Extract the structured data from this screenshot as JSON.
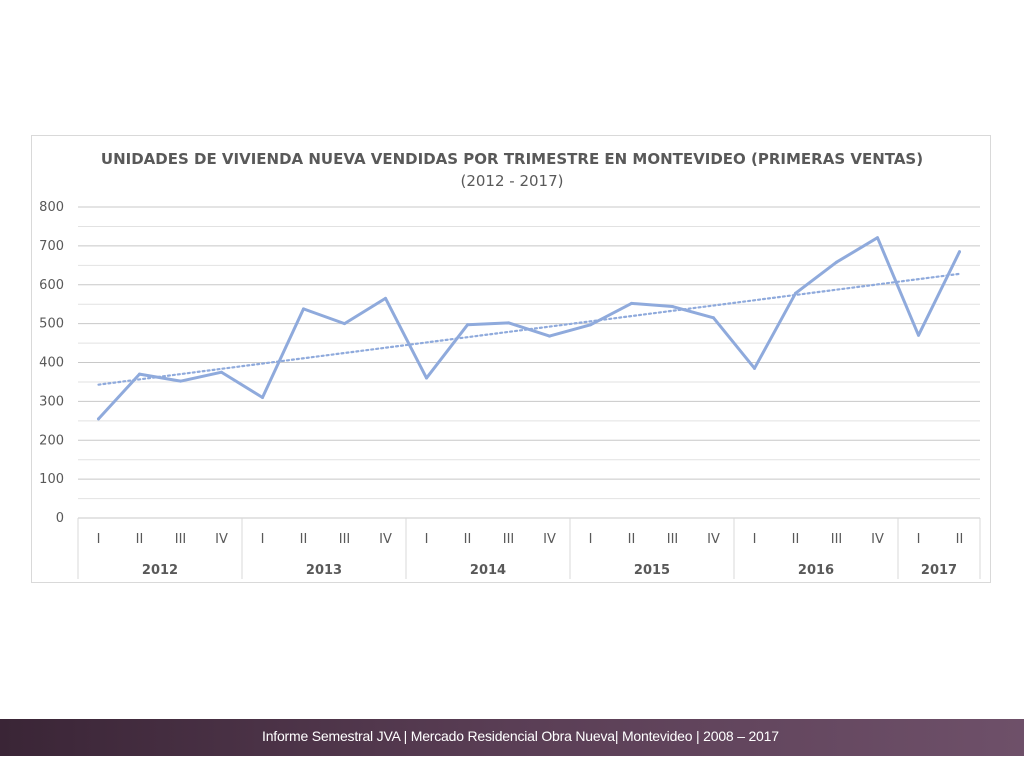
{
  "chart_data": {
    "type": "line",
    "title": "UNIDADES DE VIVIENDA NUEVA VENDIDAS POR TRIMESTRE EN MONTEVIDEO (PRIMERAS VENTAS)",
    "subtitle": "(2012 - 2017)",
    "ylim": [
      0,
      800
    ],
    "y_ticks": [
      "0",
      "100",
      "200",
      "300",
      "400",
      "500",
      "600",
      "700",
      "800"
    ],
    "grid": true,
    "legend": "none",
    "categories": [
      "I",
      "II",
      "III",
      "IV",
      "I",
      "II",
      "III",
      "IV",
      "I",
      "II",
      "III",
      "IV",
      "I",
      "II",
      "III",
      "IV",
      "I",
      "II",
      "III",
      "IV",
      "I",
      "II"
    ],
    "groups": [
      {
        "label": "2012",
        "count": 4
      },
      {
        "label": "2013",
        "count": 4
      },
      {
        "label": "2014",
        "count": 4
      },
      {
        "label": "2015",
        "count": 4
      },
      {
        "label": "2016",
        "count": 4
      },
      {
        "label": "2017",
        "count": 2
      }
    ],
    "series": [
      {
        "values": [
          255,
          370,
          352,
          375,
          310,
          538,
          500,
          565,
          360,
          497,
          502,
          468,
          497,
          552,
          544,
          515,
          385,
          578,
          658,
          721,
          470,
          685
        ],
        "color": "#8faadc"
      }
    ],
    "trendline": {
      "type": "linear",
      "start": 343,
      "end": 628,
      "color": "#8faadc",
      "style": "dotted"
    }
  },
  "footer": {
    "text": "Informe Semestral JVA | Mercado Residencial Obra Nueva| Montevideo | 2008 – 2017"
  }
}
